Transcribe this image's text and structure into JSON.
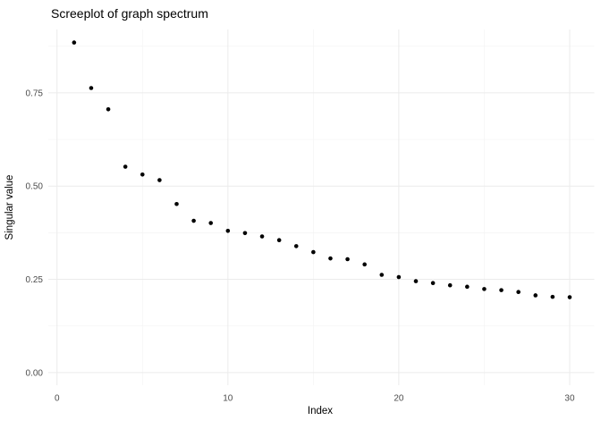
{
  "chart_data": {
    "type": "scatter",
    "title": "Screeplot of graph spectrum",
    "xlabel": "Index",
    "ylabel": "Singular value",
    "x": [
      1,
      2,
      3,
      4,
      5,
      6,
      7,
      8,
      9,
      10,
      11,
      12,
      13,
      14,
      15,
      16,
      17,
      18,
      19,
      20,
      21,
      22,
      23,
      24,
      25,
      26,
      27,
      28,
      29,
      30
    ],
    "values": [
      0.885,
      0.763,
      0.706,
      0.552,
      0.531,
      0.516,
      0.452,
      0.407,
      0.401,
      0.38,
      0.374,
      0.365,
      0.355,
      0.339,
      0.323,
      0.306,
      0.304,
      0.29,
      0.262,
      0.256,
      0.245,
      0.24,
      0.234,
      0.23,
      0.224,
      0.221,
      0.216,
      0.207,
      0.203,
      0.202
    ],
    "xlim": [
      -0.51,
      31.44
    ],
    "ylim": [
      -0.034,
      0.92
    ],
    "x_major_ticks": {
      "values": [
        0,
        10,
        20,
        30
      ],
      "labels": [
        "0",
        "10",
        "20",
        "30"
      ]
    },
    "y_major_ticks": {
      "values": [
        0,
        0.25,
        0.5,
        0.75
      ],
      "labels": [
        "0.00",
        "0.25",
        "0.50",
        "0.75"
      ]
    },
    "x_minor_ticks": [
      5,
      15,
      25
    ],
    "y_minor_ticks": [
      0.125,
      0.375,
      0.625,
      0.875
    ],
    "grid": "on",
    "legend": "none",
    "point_size": 2.3,
    "colors": {
      "background": "#ffffff",
      "point": "#000000",
      "grid_major": "#ebebeb",
      "grid_minor": "#f4f4f4",
      "tick_label": "#4d4d4d",
      "title": "#000000",
      "axis_title": "#000000"
    }
  }
}
